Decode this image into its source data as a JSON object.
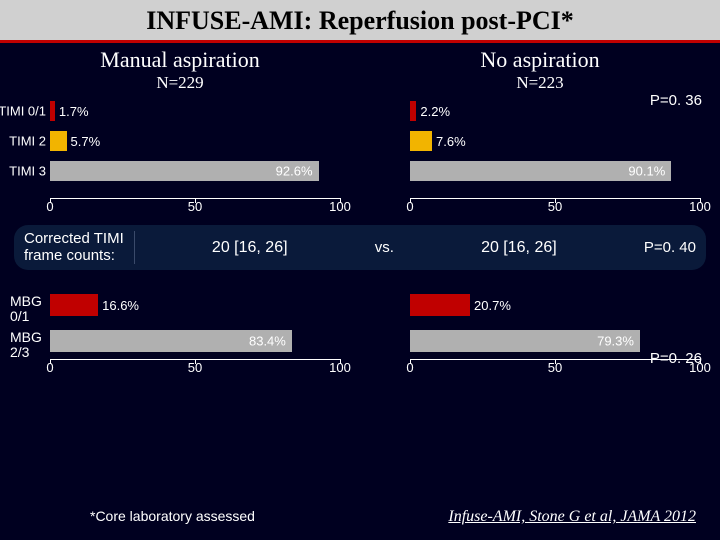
{
  "title": "INFUSE-AMI: Reperfusion post-PCI*",
  "groups": {
    "left": {
      "header": "Manual aspiration",
      "n": "N=229"
    },
    "right": {
      "header": "No aspiration",
      "n": "N=223"
    }
  },
  "pvalues": {
    "timi": "P=0. 36",
    "ctfc": "P=0. 40",
    "mbg": "P=0. 26"
  },
  "timi": {
    "labels": [
      "TIMI 0/1",
      "TIMI 2",
      "TIMI 3"
    ],
    "left": {
      "values": [
        1.7,
        5.7,
        92.6
      ],
      "text": [
        "1.7%",
        "5.7%",
        "92.6%"
      ]
    },
    "right": {
      "values": [
        2.2,
        7.6,
        90.1
      ],
      "text": [
        "2.2%",
        "7.6%",
        "90.1%"
      ]
    },
    "colors": [
      "#c00000",
      "#f2b400",
      "#b0b0b0"
    ],
    "xticks": [
      0,
      50,
      100
    ]
  },
  "ctfc": {
    "label_line1": "Corrected TIMI",
    "label_line2": "frame counts:",
    "left_val": "20 [16, 26]",
    "vs": "vs.",
    "right_val": "20 [16, 26]"
  },
  "mbg": {
    "labels": [
      "MBG\n0/1",
      "MBG\n2/3"
    ],
    "left": {
      "values": [
        16.6,
        83.4
      ],
      "text": [
        "16.6%",
        "83.4%"
      ]
    },
    "right": {
      "values": [
        20.7,
        79.3
      ],
      "text": [
        "20.7%",
        "79.3%"
      ]
    },
    "colors": [
      "#c00000",
      "#b0b0b0"
    ],
    "xticks": [
      0,
      50,
      100
    ]
  },
  "footnote": "*Core laboratory assessed",
  "citation": "Infuse-AMI, Stone G et al, JAMA 2012",
  "style": {
    "bg": "#000020",
    "title_bg": "#d0d0d0",
    "accent": "#c00000",
    "bar_area_w": 290
  }
}
